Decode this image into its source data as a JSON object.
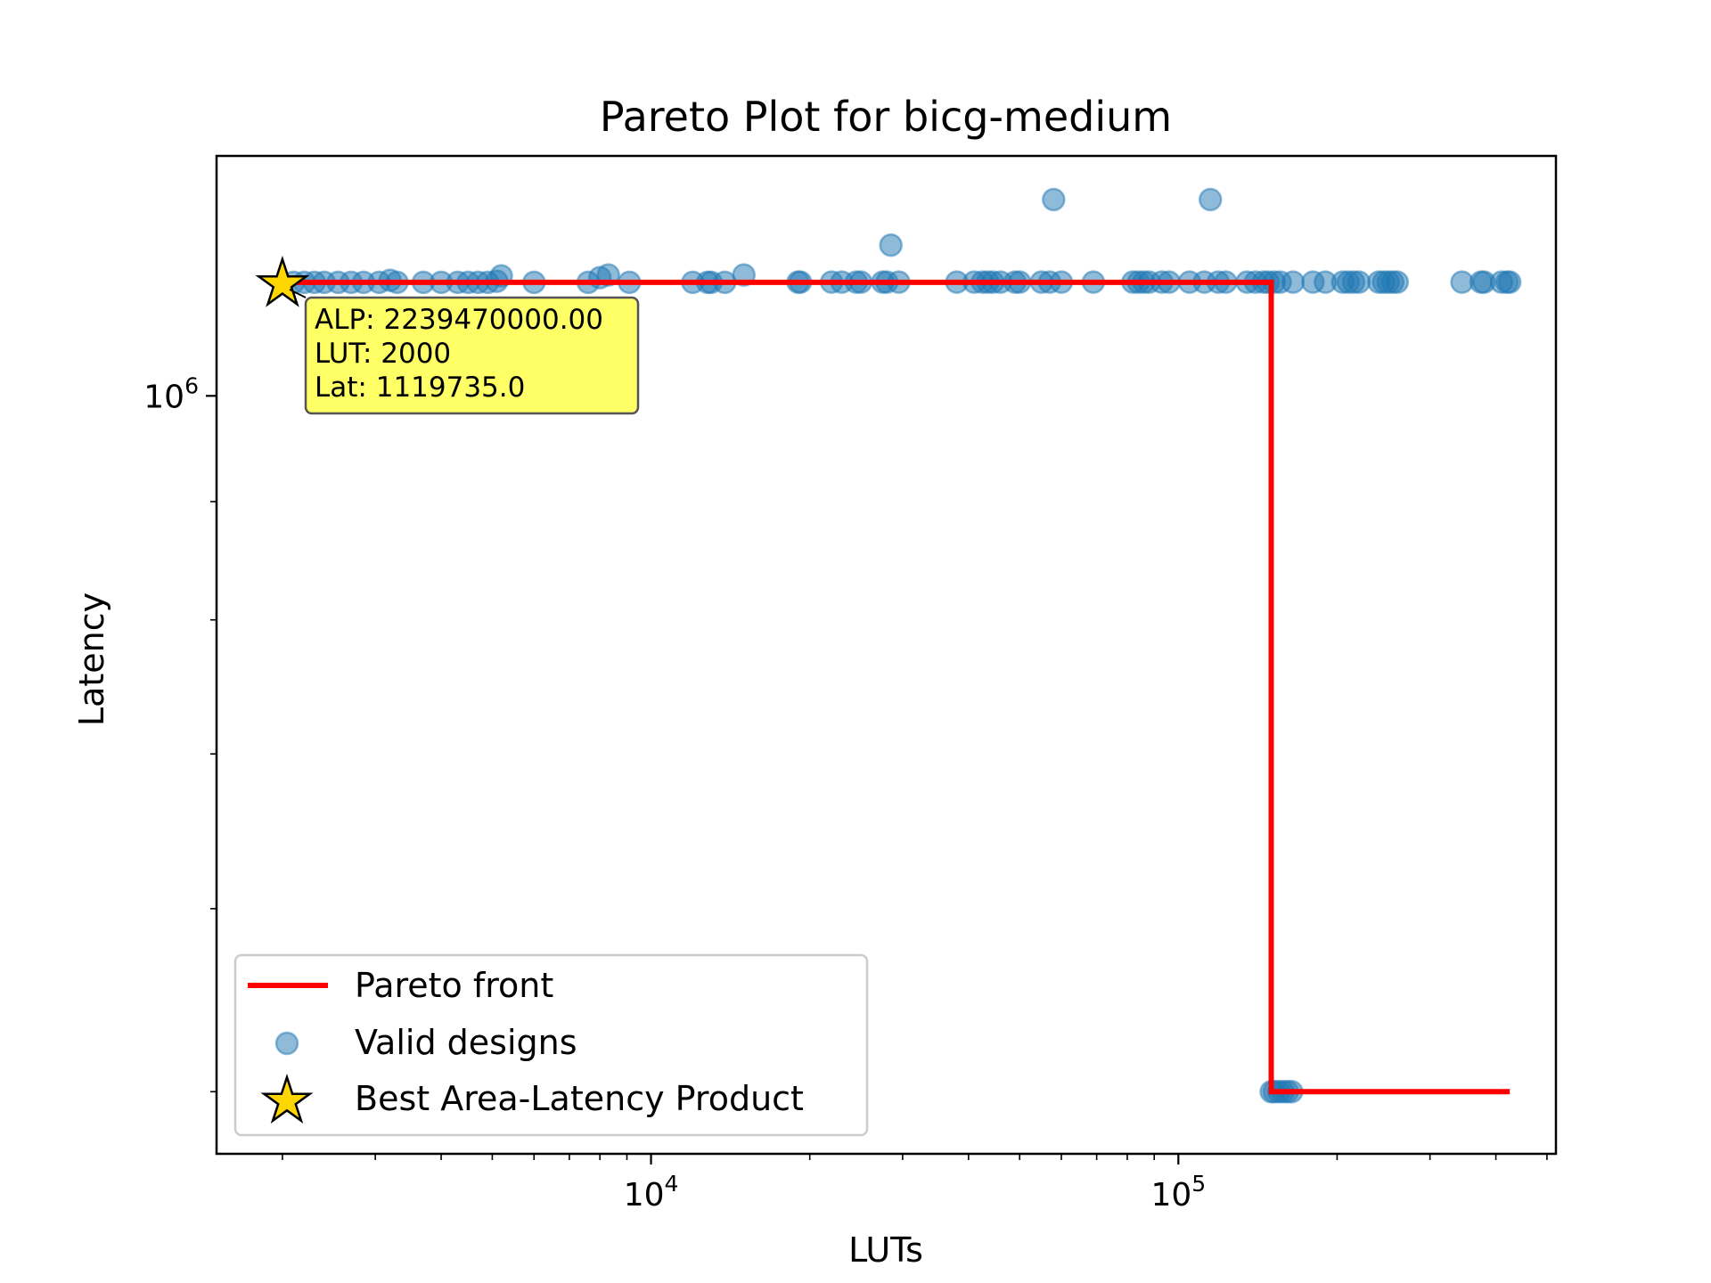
{
  "chart_data": {
    "type": "scatter",
    "title": "Pareto Plot for bicg-medium",
    "xlabel": "LUTs",
    "ylabel": "Latency",
    "xscale": "log",
    "yscale": "log",
    "xlim": [
      1500,
      520000
    ],
    "ylim": [
      470000,
      1270000
    ],
    "grid": false,
    "legend_position": "lower-left",
    "colors": {
      "scatter": "#1f77b4",
      "pareto": "#ff0000",
      "star": "#ffd700",
      "annotation_bg": "#ffff66"
    },
    "x_major_ticks": [
      {
        "value": 10000,
        "base": "10",
        "exp": "4"
      },
      {
        "value": 100000,
        "base": "10",
        "exp": "5"
      }
    ],
    "y_major_ticks": [
      {
        "value": 1000000,
        "base": "10",
        "exp": "6"
      }
    ],
    "series": [
      {
        "name": "Valid designs",
        "type": "scatter",
        "points": [
          [
            2100,
            1119735
          ],
          [
            2200,
            1119735
          ],
          [
            2300,
            1119735
          ],
          [
            2400,
            1119735
          ],
          [
            2550,
            1119735
          ],
          [
            2700,
            1119735
          ],
          [
            2850,
            1119735
          ],
          [
            3050,
            1119735
          ],
          [
            3200,
            1122000
          ],
          [
            3300,
            1119735
          ],
          [
            3700,
            1119735
          ],
          [
            4000,
            1119735
          ],
          [
            4300,
            1119735
          ],
          [
            4500,
            1119735
          ],
          [
            4700,
            1119735
          ],
          [
            4900,
            1119735
          ],
          [
            5100,
            1121000
          ],
          [
            5200,
            1127000
          ],
          [
            6000,
            1119735
          ],
          [
            7600,
            1119735
          ],
          [
            8000,
            1125000
          ],
          [
            8300,
            1128000
          ],
          [
            9100,
            1119735
          ],
          [
            12000,
            1119735
          ],
          [
            12800,
            1119735
          ],
          [
            13000,
            1119735
          ],
          [
            13800,
            1119735
          ],
          [
            15000,
            1128000
          ],
          [
            19000,
            1120000
          ],
          [
            19200,
            1120000
          ],
          [
            22000,
            1120000
          ],
          [
            23000,
            1120000
          ],
          [
            24500,
            1120000
          ],
          [
            25000,
            1120000
          ],
          [
            27500,
            1120000
          ],
          [
            28000,
            1120000
          ],
          [
            28500,
            1162000
          ],
          [
            29500,
            1120000
          ],
          [
            38000,
            1120000
          ],
          [
            41000,
            1120000
          ],
          [
            42500,
            1120000
          ],
          [
            43500,
            1120000
          ],
          [
            44500,
            1120000
          ],
          [
            46000,
            1120000
          ],
          [
            49000,
            1120000
          ],
          [
            50000,
            1120000
          ],
          [
            55000,
            1120000
          ],
          [
            57000,
            1120000
          ],
          [
            58000,
            1216000
          ],
          [
            60000,
            1120000
          ],
          [
            69000,
            1120000
          ],
          [
            82000,
            1120000
          ],
          [
            84000,
            1120000
          ],
          [
            86000,
            1120000
          ],
          [
            88000,
            1120000
          ],
          [
            93000,
            1120000
          ],
          [
            96000,
            1120000
          ],
          [
            105000,
            1120000
          ],
          [
            112000,
            1120000
          ],
          [
            115000,
            1216000
          ],
          [
            119000,
            1120000
          ],
          [
            123000,
            1120000
          ],
          [
            135000,
            1120000
          ],
          [
            140000,
            1120000
          ],
          [
            145000,
            1120000
          ],
          [
            148000,
            1120000
          ],
          [
            152000,
            1120000
          ],
          [
            156000,
            1120000
          ],
          [
            165000,
            1120000
          ],
          [
            180000,
            1120000
          ],
          [
            190000,
            1120000
          ],
          [
            205000,
            1120000
          ],
          [
            210000,
            1120000
          ],
          [
            215000,
            1120000
          ],
          [
            220000,
            1120000
          ],
          [
            240000,
            1120000
          ],
          [
            245000,
            1120000
          ],
          [
            250000,
            1120000
          ],
          [
            255000,
            1120000
          ],
          [
            260000,
            1120000
          ],
          [
            345000,
            1120000
          ],
          [
            375000,
            1120000
          ],
          [
            380000,
            1120000
          ],
          [
            410000,
            1120000
          ],
          [
            420000,
            1120000
          ],
          [
            425000,
            1120000
          ],
          [
            150000,
            500000
          ],
          [
            152000,
            500000
          ],
          [
            155000,
            500000
          ],
          [
            158000,
            500000
          ],
          [
            161000,
            500000
          ],
          [
            164000,
            500000
          ]
        ]
      },
      {
        "name": "Pareto front",
        "type": "line",
        "points": [
          [
            2000,
            1119735
          ],
          [
            150000,
            1119735
          ],
          [
            150000,
            500000
          ],
          [
            425000,
            500000
          ]
        ]
      },
      {
        "name": "Best Area-Latency Product",
        "type": "star",
        "points": [
          [
            2000,
            1119735
          ]
        ]
      }
    ],
    "annotation": {
      "lines": [
        "ALP: 2239470000.00",
        "LUT: 2000",
        "Lat: 1119735.0"
      ]
    }
  }
}
